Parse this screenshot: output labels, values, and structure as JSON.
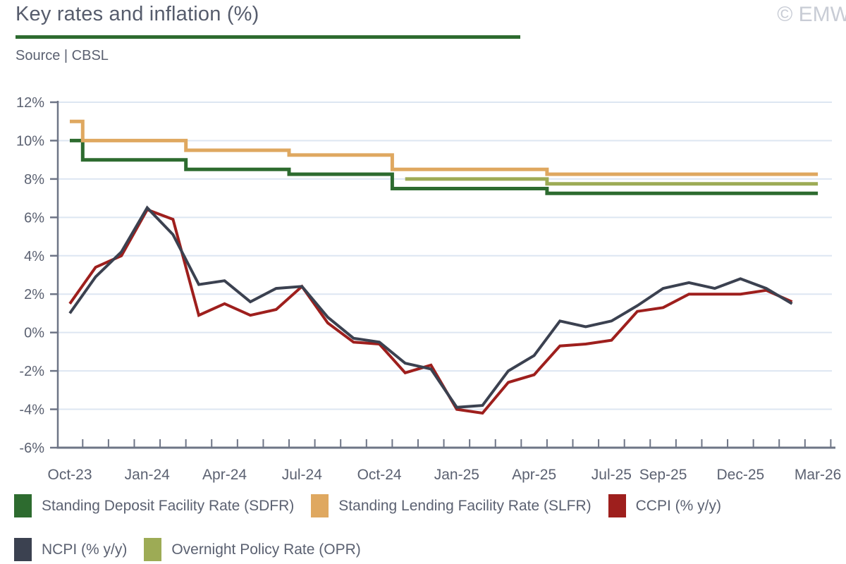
{
  "header": {
    "title": "Key rates and inflation (%)",
    "source": "Source | CBSL",
    "watermark": "© EMW"
  },
  "colors": {
    "title_text": "#565c6c",
    "label_text": "#5b6171",
    "underline": "#2d6b2f",
    "grid": "#dde6f2",
    "axis": "#6e7586",
    "watermark": "#c8ccd5",
    "background": "#ffffff"
  },
  "chart_data": {
    "type": "line",
    "title": "Key rates and inflation (%)",
    "source": "Source | CBSL",
    "ylim": [
      -6,
      12
    ],
    "y_unit": "%",
    "grid": "horizontal",
    "legend_position": "bottom",
    "y_tick_values": [
      12,
      10,
      8,
      6,
      4,
      2,
      0,
      -2,
      -4,
      -6
    ],
    "y_tick_labels": [
      "12%",
      "10%",
      "8%",
      "6%",
      "4%",
      "2%",
      "0%",
      "-2%",
      "-4%",
      "-6%"
    ],
    "months": [
      "Oct-23",
      "Nov-23",
      "Dec-23",
      "Jan-24",
      "Feb-24",
      "Mar-24",
      "Apr-24",
      "May-24",
      "Jun-24",
      "Jul-24",
      "Aug-24",
      "Sep-24",
      "Oct-24",
      "Nov-24",
      "Dec-24",
      "Jan-25",
      "Feb-25",
      "Mar-25",
      "Apr-25",
      "May-25",
      "Jun-25",
      "Jul-25",
      "Aug-25",
      "Sep-25",
      "Oct-25",
      "Nov-25",
      "Dec-25",
      "Jan-26",
      "Feb-26",
      "Mar-26"
    ],
    "x_tick_labels": [
      {
        "i": 0,
        "label": "Oct-23"
      },
      {
        "i": 3,
        "label": "Jan-24"
      },
      {
        "i": 6,
        "label": "Apr-24"
      },
      {
        "i": 9,
        "label": "Jul-24"
      },
      {
        "i": 12,
        "label": "Oct-24"
      },
      {
        "i": 15,
        "label": "Jan-25"
      },
      {
        "i": 18,
        "label": "Apr-25"
      },
      {
        "i": 21,
        "label": "Jul-25"
      },
      {
        "i": 23,
        "label": "Sep-25"
      },
      {
        "i": 26,
        "label": "Dec-25"
      },
      {
        "i": 29,
        "label": "Mar-26"
      }
    ],
    "series": [
      {
        "name": "Standing Deposit Facility Rate (SDFR)",
        "slug": "sdfr",
        "color": "#2d6b2f",
        "style": "step",
        "values": [
          10,
          9,
          9,
          9,
          9,
          8.5,
          8.5,
          8.5,
          8.5,
          8.25,
          8.25,
          8.25,
          8.25,
          7.5,
          7.5,
          7.5,
          7.5,
          7.5,
          7.5,
          7.25,
          7.25,
          7.25,
          7.25,
          7.25,
          7.25,
          7.25,
          7.25,
          7.25,
          7.25,
          7.25
        ]
      },
      {
        "name": "Standing Lending Facility Rate (SLFR)",
        "slug": "slfr",
        "color": "#dfa860",
        "style": "step",
        "values": [
          11,
          10,
          10,
          10,
          10,
          9.5,
          9.5,
          9.5,
          9.5,
          9.25,
          9.25,
          9.25,
          9.25,
          8.5,
          8.5,
          8.5,
          8.5,
          8.5,
          8.5,
          8.25,
          8.25,
          8.25,
          8.25,
          8.25,
          8.25,
          8.25,
          8.25,
          8.25,
          8.25,
          8.25
        ]
      },
      {
        "name": "CCPI (% y/y)",
        "slug": "ccpi",
        "color": "#9e1f1d",
        "style": "line",
        "values": [
          1.5,
          3.4,
          4.0,
          6.4,
          5.9,
          0.9,
          1.5,
          0.9,
          1.2,
          2.4,
          0.5,
          -0.5,
          -0.6,
          -2.1,
          -1.7,
          -4.0,
          -4.2,
          -2.6,
          -2.2,
          -0.7,
          -0.6,
          -0.4,
          1.1,
          1.3,
          2.0,
          2.0,
          2.0,
          2.2,
          1.6,
          null
        ]
      },
      {
        "name": "NCPI (% y/y)",
        "slug": "ncpi",
        "color": "#3b4150",
        "style": "line",
        "values": [
          1.0,
          2.9,
          4.2,
          6.5,
          5.1,
          2.5,
          2.7,
          1.6,
          2.3,
          2.4,
          0.8,
          -0.3,
          -0.5,
          -1.6,
          -1.9,
          -3.9,
          -3.8,
          -2.0,
          -1.2,
          0.6,
          0.3,
          0.6,
          1.4,
          2.3,
          2.6,
          2.3,
          2.8,
          2.3,
          1.5,
          null
        ]
      },
      {
        "name": "Overnight Policy Rate (OPR)",
        "slug": "opr",
        "color": "#9dab55",
        "style": "step",
        "values": [
          null,
          null,
          null,
          null,
          null,
          null,
          null,
          null,
          null,
          null,
          null,
          null,
          null,
          8.0,
          8.0,
          8.0,
          8.0,
          8.0,
          8.0,
          7.75,
          7.75,
          7.75,
          7.75,
          7.75,
          7.75,
          7.75,
          7.75,
          7.75,
          7.75,
          7.75
        ]
      }
    ],
    "legend_rows": [
      [
        0,
        1,
        2
      ],
      [
        3,
        4
      ]
    ]
  }
}
